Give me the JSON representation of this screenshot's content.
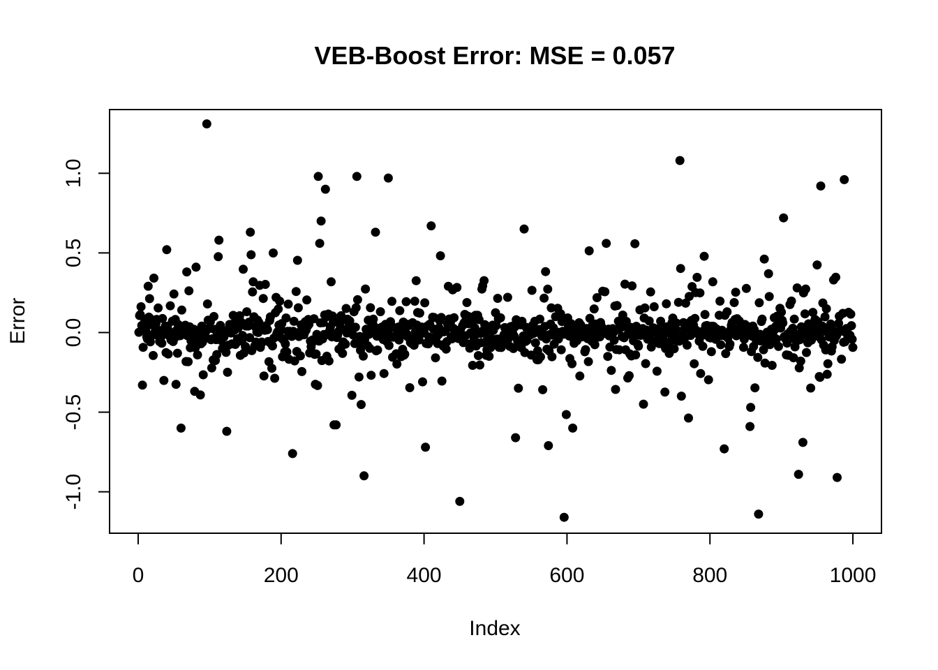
{
  "chart_data": {
    "type": "scatter",
    "title": "VEB-Boost Error: MSE = 0.057",
    "xlabel": "Index",
    "ylabel": "Error",
    "xlim": [
      -40,
      1040
    ],
    "ylim": [
      -1.26,
      1.4
    ],
    "x_ticks": [
      0,
      200,
      400,
      600,
      800,
      1000
    ],
    "x_tick_labels": [
      "0",
      "200",
      "400",
      "600",
      "800",
      "1000"
    ],
    "y_ticks": [
      -1.0,
      -0.5,
      0.0,
      0.5,
      1.0
    ],
    "y_tick_labels": [
      "-1.0",
      "-0.5",
      "0.0",
      "0.5",
      "1.0"
    ],
    "grid": false,
    "legend": "none",
    "marker_color": "#000000",
    "n_points": 1000,
    "notable_points": [
      {
        "x": 96,
        "y": 1.31
      },
      {
        "x": 252,
        "y": 0.98
      },
      {
        "x": 262,
        "y": 0.9
      },
      {
        "x": 306,
        "y": 0.98
      },
      {
        "x": 350,
        "y": 0.97
      },
      {
        "x": 256,
        "y": 0.7
      },
      {
        "x": 410,
        "y": 0.67
      },
      {
        "x": 758,
        "y": 1.08
      },
      {
        "x": 955,
        "y": 0.92
      },
      {
        "x": 988,
        "y": 0.96
      },
      {
        "x": 903,
        "y": 0.72
      },
      {
        "x": 332,
        "y": 0.63
      },
      {
        "x": 157,
        "y": 0.63
      },
      {
        "x": 540,
        "y": 0.65
      },
      {
        "x": 113,
        "y": 0.58
      },
      {
        "x": 40,
        "y": 0.52
      },
      {
        "x": 60,
        "y": -0.6
      },
      {
        "x": 124,
        "y": -0.62
      },
      {
        "x": 216,
        "y": -0.76
      },
      {
        "x": 316,
        "y": -0.9
      },
      {
        "x": 450,
        "y": -1.06
      },
      {
        "x": 596,
        "y": -1.16
      },
      {
        "x": 868,
        "y": -1.14
      },
      {
        "x": 924,
        "y": -0.89
      },
      {
        "x": 978,
        "y": -0.91
      },
      {
        "x": 930,
        "y": -0.69
      },
      {
        "x": 820,
        "y": -0.73
      },
      {
        "x": 402,
        "y": -0.72
      },
      {
        "x": 574,
        "y": -0.71
      },
      {
        "x": 528,
        "y": -0.66
      },
      {
        "x": 608,
        "y": -0.6
      },
      {
        "x": 856,
        "y": -0.59
      }
    ]
  }
}
